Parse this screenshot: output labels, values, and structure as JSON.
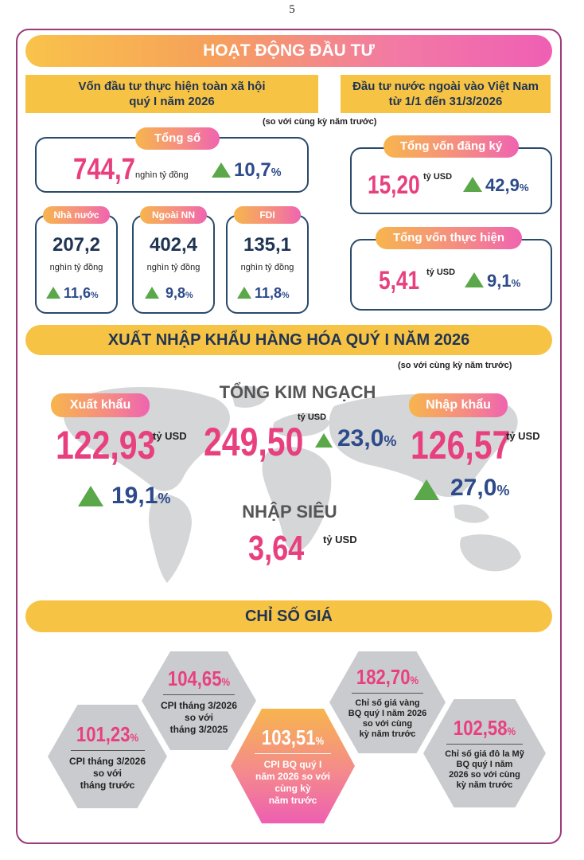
{
  "page_number": "5",
  "invest": {
    "title": "HOẠT ĐỘNG ĐẦU TƯ",
    "left_header": [
      "Vốn đầu tư thực hiện toàn xã hội",
      "quý I năm 2026"
    ],
    "right_header": [
      "Đầu tư nước ngoài vào Việt Nam",
      "từ 1/1 đến 31/3/2026"
    ],
    "note": "(so với cùng kỳ năm trước)",
    "total": {
      "label": "Tổng số",
      "value": "744,7",
      "unit": "nghìn tỷ đồng",
      "change": "10,7",
      "pct": "%"
    },
    "sub": [
      {
        "label": "Nhà nước",
        "value": "207,2",
        "unit": "nghìn tỷ đồng",
        "change": "11,6",
        "pct": "%"
      },
      {
        "label": "Ngoài NN",
        "value": "402,4",
        "unit": "nghìn tỷ đồng",
        "change": "9,8",
        "pct": "%"
      },
      {
        "label": "FDI",
        "value": "135,1",
        "unit": "nghìn tỷ đồng",
        "change": "11,8",
        "pct": "%"
      }
    ],
    "fdi_registered": {
      "label": "Tổng vốn đăng ký",
      "value": "15,20",
      "unit": "tỷ USD",
      "change": "42,9",
      "pct": "%"
    },
    "fdi_disbursed": {
      "label": "Tổng vốn thực hiện",
      "value": "5,41",
      "unit": "tỷ USD",
      "change": "9,1",
      "pct": "%"
    }
  },
  "trade": {
    "title": "XUẤT NHẬP KHẨU HÀNG HÓA QUÝ I NĂM 2026",
    "note": "(so với cùng kỳ năm trước)",
    "export": {
      "label": "Xuất khẩu",
      "value": "122,93",
      "unit": "tỷ USD",
      "change": "19,1",
      "pct": "%"
    },
    "total": {
      "label": "TỔNG KIM NGẠCH",
      "value": "249,50",
      "unit": "tỷ USD",
      "change": "23,0",
      "pct": "%"
    },
    "import": {
      "label": "Nhập khẩu",
      "value": "126,57",
      "unit": "tỷ USD",
      "change": "27,0",
      "pct": "%"
    },
    "deficit": {
      "label": "NHẬP SIÊU",
      "value": "3,64",
      "unit": "tỷ USD"
    }
  },
  "prices": {
    "title": "CHỈ SỐ GIÁ",
    "items": [
      {
        "value": "101,23",
        "pct": "%",
        "label": [
          "CPI tháng 3/2026",
          "so với",
          "tháng trước"
        ]
      },
      {
        "value": "104,65",
        "pct": "%",
        "label": [
          "CPI tháng 3/2026",
          "so với",
          "tháng 3/2025"
        ]
      },
      {
        "value": "103,51",
        "pct": "%",
        "label": [
          "CPI BQ quý I",
          "năm 2026 so với",
          "cùng kỳ",
          "năm trước"
        ]
      },
      {
        "value": "182,70",
        "pct": "%",
        "label": [
          "Chỉ số giá vàng",
          "BQ quý I năm 2026",
          "so với cùng",
          "kỳ năm trước"
        ]
      },
      {
        "value": "102,58",
        "pct": "%",
        "label": [
          "Chỉ số giá đô la Mỹ",
          "BQ quý I năm",
          "2026 so với cùng",
          "kỳ năm trước"
        ]
      }
    ]
  },
  "colors": {
    "pink": "#e8407f",
    "navy": "#1f3453",
    "yellow": "#f7c344",
    "green": "#5aa84a",
    "blue": "#2d4a8a"
  }
}
